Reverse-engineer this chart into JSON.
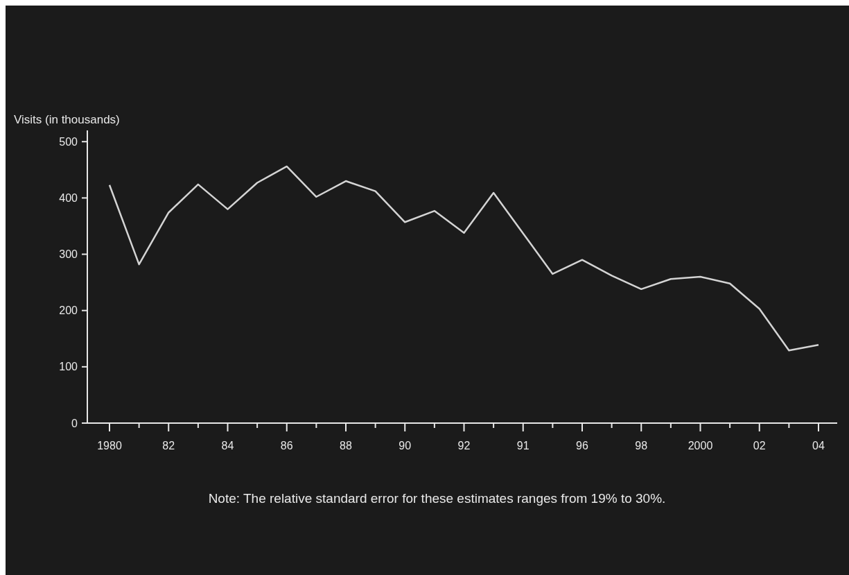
{
  "chart_data": {
    "type": "line",
    "ylabel": "Visits (in thousands)",
    "categories": [
      "1980",
      null,
      "82",
      null,
      "84",
      null,
      "86",
      null,
      "88",
      null,
      "90",
      null,
      "92",
      null,
      "91",
      null,
      "96",
      null,
      "98",
      null,
      "2000",
      null,
      "02",
      null,
      "04"
    ],
    "series": [
      {
        "color": "#d4d4d4",
        "values": [
          423,
          282,
          374,
          424,
          380,
          427,
          456,
          402,
          430,
          412,
          357,
          377,
          338,
          409,
          337,
          265,
          290,
          262,
          238,
          256,
          260,
          248,
          203,
          129,
          139
        ]
      }
    ],
    "ylim": [
      0,
      520
    ],
    "yticks": [
      0,
      100,
      200,
      300,
      400,
      500
    ],
    "grid": false,
    "marker": "none",
    "line_style": "solid",
    "annotations": [
      "Note: The relative standard error for these estimates ranges from 19% to 30%."
    ]
  }
}
